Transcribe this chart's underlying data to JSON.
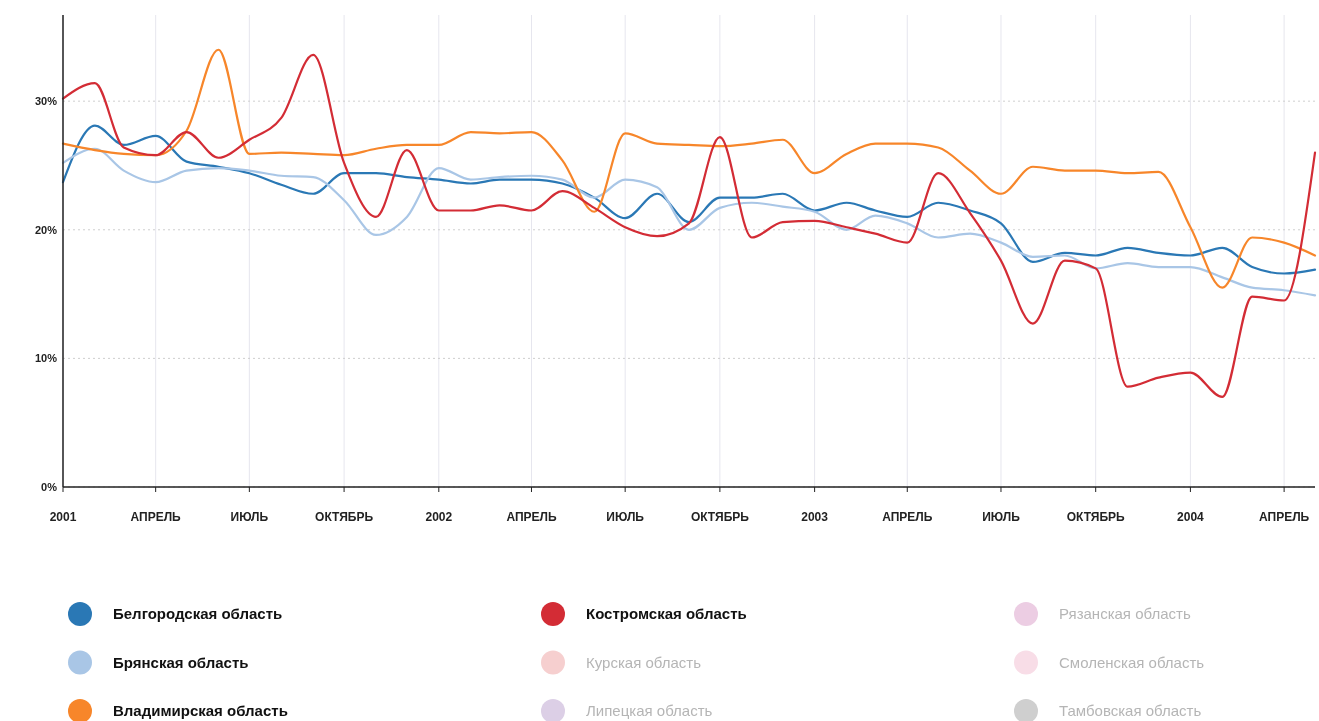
{
  "chart_data": {
    "type": "line",
    "x": [
      "2001-01",
      "2001-02",
      "2001-03",
      "2001-04",
      "2001-05",
      "2001-06",
      "2001-07",
      "2001-08",
      "2001-09",
      "2001-10",
      "2001-11",
      "2001-12",
      "2002-01",
      "2002-02",
      "2002-03",
      "2002-04",
      "2002-05",
      "2002-06",
      "2002-07",
      "2002-08",
      "2002-09",
      "2002-10",
      "2002-11",
      "2002-12",
      "2003-01",
      "2003-02",
      "2003-03",
      "2003-04",
      "2003-05",
      "2003-06",
      "2003-07",
      "2003-08",
      "2003-09",
      "2003-10",
      "2003-11",
      "2003-12",
      "2004-01",
      "2004-02",
      "2004-03",
      "2004-04",
      "2004-05"
    ],
    "series": [
      {
        "name": "Белгородская область",
        "color": "#2a78b5",
        "values": [
          23.7,
          28.1,
          26.6,
          27.3,
          25.3,
          24.9,
          24.4,
          23.5,
          22.8,
          24.4,
          24.4,
          24.1,
          23.9,
          23.6,
          23.9,
          23.9,
          23.6,
          22.5,
          20.9,
          22.8,
          20.6,
          22.5,
          22.5,
          22.8,
          21.5,
          22.1,
          21.5,
          21.0,
          22.1,
          21.5,
          20.5,
          17.5,
          18.2,
          18.0,
          18.6,
          18.2,
          18.0,
          18.6,
          17.1,
          16.6,
          16.9
        ]
      },
      {
        "name": "Брянская область",
        "color": "#a9c6e6",
        "values": [
          25.2,
          26.3,
          24.6,
          23.7,
          24.6,
          24.8,
          24.6,
          24.2,
          24.1,
          22.3,
          19.6,
          21.0,
          24.8,
          23.9,
          24.1,
          24.2,
          23.9,
          22.5,
          23.9,
          23.3,
          20.0,
          21.7,
          22.1,
          21.8,
          21.4,
          20.0,
          21.1,
          20.5,
          19.4,
          19.7,
          19.0,
          17.9,
          18.0,
          17.0,
          17.4,
          17.1,
          17.1,
          16.3,
          15.5,
          15.3,
          14.9
        ]
      },
      {
        "name": "Владимирская область",
        "color": "#f7862a",
        "values": [
          26.7,
          26.2,
          25.9,
          25.8,
          27.7,
          34.0,
          25.9,
          26.0,
          25.9,
          25.8,
          26.3,
          26.6,
          26.6,
          27.6,
          27.5,
          27.6,
          25.4,
          21.4,
          27.5,
          26.7,
          26.6,
          26.5,
          26.7,
          27.0,
          24.4,
          25.9,
          26.7,
          26.7,
          26.4,
          24.6,
          22.8,
          24.9,
          24.6,
          24.6,
          24.4,
          24.5,
          20.2,
          15.5,
          19.4,
          19.0,
          18.0
        ]
      },
      {
        "name": "Костромская область",
        "color": "#d32c35",
        "values": [
          30.2,
          31.4,
          26.4,
          25.8,
          27.6,
          25.6,
          27.0,
          28.7,
          33.6,
          25.2,
          21.0,
          26.2,
          21.5,
          21.5,
          21.9,
          21.5,
          23.0,
          21.7,
          20.2,
          19.5,
          20.5,
          27.2,
          19.4,
          20.6,
          20.7,
          20.2,
          19.7,
          19.0,
          24.4,
          21.3,
          17.6,
          12.7,
          17.6,
          17.0,
          7.8,
          8.5,
          8.9,
          7.0,
          14.8,
          14.5,
          26.0
        ]
      },
      {
        "name": "Курская область",
        "color": "#f6cfcf",
        "values": [
          null,
          null,
          null,
          null,
          null,
          null,
          null,
          null,
          null,
          null,
          null,
          null,
          null,
          null,
          null,
          null,
          null,
          null,
          null,
          null,
          null,
          null,
          null,
          null,
          null,
          null,
          null,
          null,
          null,
          null,
          null,
          null,
          null,
          null,
          null,
          null,
          null,
          null,
          null,
          null,
          null
        ]
      },
      {
        "name": "Липецкая область",
        "color": "#dccfe6",
        "values": [
          null,
          null,
          null,
          null,
          null,
          null,
          null,
          null,
          null,
          null,
          null,
          null,
          null,
          null,
          null,
          null,
          null,
          null,
          null,
          null,
          null,
          null,
          null,
          null,
          null,
          null,
          null,
          null,
          null,
          null,
          null,
          null,
          null,
          null,
          null,
          null,
          null,
          null,
          null,
          null,
          null
        ]
      },
      {
        "name": "Рязанская область",
        "color": "#eccde3",
        "values": [
          null,
          null,
          null,
          null,
          null,
          null,
          null,
          null,
          null,
          null,
          null,
          null,
          null,
          null,
          null,
          null,
          null,
          null,
          null,
          null,
          null,
          null,
          null,
          null,
          null,
          null,
          null,
          null,
          null,
          null,
          null,
          null,
          null,
          null,
          null,
          null,
          null,
          null,
          null,
          null,
          null
        ]
      },
      {
        "name": "Смоленская область",
        "color": "#f8dde7",
        "values": [
          null,
          null,
          null,
          null,
          null,
          null,
          null,
          null,
          null,
          null,
          null,
          null,
          null,
          null,
          null,
          null,
          null,
          null,
          null,
          null,
          null,
          null,
          null,
          null,
          null,
          null,
          null,
          null,
          null,
          null,
          null,
          null,
          null,
          null,
          null,
          null,
          null,
          null,
          null,
          null,
          null
        ]
      },
      {
        "name": "Тамбовская область",
        "color": "#cfcfcf",
        "values": [
          null,
          null,
          null,
          null,
          null,
          null,
          null,
          null,
          null,
          null,
          null,
          null,
          null,
          null,
          null,
          null,
          null,
          null,
          null,
          null,
          null,
          null,
          null,
          null,
          null,
          null,
          null,
          null,
          null,
          null,
          null,
          null,
          null,
          null,
          null,
          null,
          null,
          null,
          null,
          null,
          null
        ]
      }
    ],
    "xlim": [
      "2001-01",
      "2004-05"
    ],
    "xticks": [
      {
        "value": "2001-01",
        "label": "2001"
      },
      {
        "value": "2001-04",
        "label": "АПРЕЛЬ"
      },
      {
        "value": "2001-07",
        "label": "ИЮЛЬ"
      },
      {
        "value": "2001-10",
        "label": "ОКТЯБРЬ"
      },
      {
        "value": "2002-01",
        "label": "2002"
      },
      {
        "value": "2002-04",
        "label": "АПРЕЛЬ"
      },
      {
        "value": "2002-07",
        "label": "ИЮЛЬ"
      },
      {
        "value": "2002-10",
        "label": "ОКТЯБРЬ"
      },
      {
        "value": "2003-01",
        "label": "2003"
      },
      {
        "value": "2003-04",
        "label": "АПРЕЛЬ"
      },
      {
        "value": "2003-07",
        "label": "ИЮЛЬ"
      },
      {
        "value": "2003-10",
        "label": "ОКТЯБРЬ"
      },
      {
        "value": "2004-01",
        "label": "2004"
      },
      {
        "value": "2004-04",
        "label": "АПРЕЛЬ"
      }
    ],
    "ylim": [
      0,
      36.7
    ],
    "yticks": [
      {
        "value": 0,
        "label": "0%"
      },
      {
        "value": 10,
        "label": "10%"
      },
      {
        "value": 20,
        "label": "20%"
      },
      {
        "value": 30,
        "label": "30%"
      }
    ],
    "grid": true,
    "legend": "bottom",
    "marker": "none",
    "line_style": "solid"
  }
}
